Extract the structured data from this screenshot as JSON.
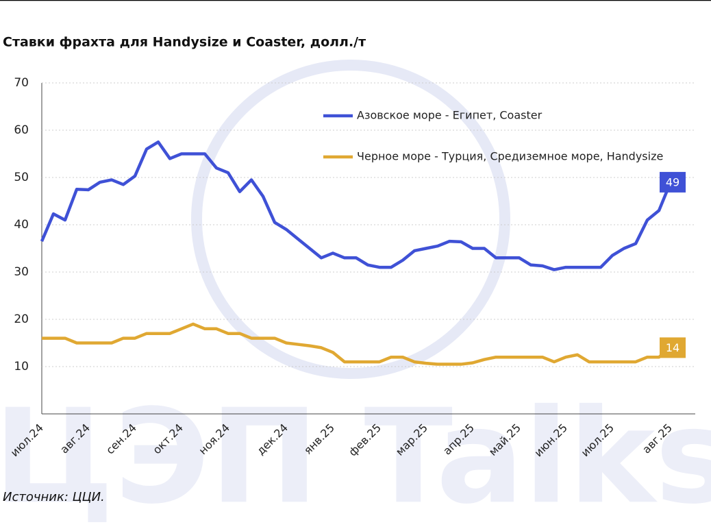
{
  "chart_data": {
    "type": "line",
    "title": "Ставки фрахта для Handysize и Coaster, долл./т",
    "source": "Источник: ЦЦИ.",
    "watermark": "ЦЭП Talks",
    "categories": [
      "июл.24",
      null,
      null,
      null,
      "авг.24",
      null,
      null,
      null,
      "сен.24",
      null,
      null,
      null,
      "окт.24",
      null,
      null,
      null,
      "ноя.24",
      null,
      null,
      null,
      null,
      "дек.24",
      null,
      null,
      null,
      "янв.25",
      null,
      null,
      null,
      "фев.25",
      null,
      null,
      null,
      "мар.25",
      null,
      null,
      null,
      "апр.25",
      null,
      null,
      null,
      "май.25",
      null,
      null,
      null,
      "июн.25",
      null,
      null,
      null,
      "июл.25",
      null,
      null,
      null,
      null,
      "авг.25",
      null,
      null
    ],
    "series": [
      {
        "name": "Азовское море - Египет, Coaster",
        "color": "#3f51d6",
        "values": [
          36.5,
          42.3,
          41,
          47.5,
          47.4,
          49,
          49.5,
          48.5,
          50.3,
          56,
          57.5,
          54,
          55,
          55,
          55,
          52,
          51,
          47,
          49.5,
          46,
          40.5,
          39,
          37,
          35,
          33,
          34,
          33,
          33,
          31.5,
          31,
          31,
          32.5,
          34.5,
          35,
          35.5,
          36.5,
          36.4,
          35,
          35,
          33,
          33,
          33,
          31.5,
          31.3,
          30.5,
          31,
          31,
          31,
          31,
          33.5,
          35,
          36,
          41,
          43,
          49,
          null,
          null
        ]
      },
      {
        "name": "Черное море - Турция, Средиземное море, Handysize",
        "color": "#e0a832",
        "values": [
          16,
          16,
          16,
          15,
          15,
          15,
          15,
          16,
          16,
          17,
          17,
          17,
          18,
          19,
          18,
          18,
          17,
          17,
          16,
          16,
          16,
          15,
          14.7,
          14.4,
          14,
          13,
          11,
          11,
          11,
          11,
          12,
          12,
          11,
          10.7,
          10.5,
          10.5,
          10.5,
          10.8,
          11.5,
          12,
          12,
          12,
          12,
          12,
          11,
          12,
          12.5,
          11,
          11,
          11,
          11,
          11,
          12,
          12,
          14,
          null,
          null
        ]
      }
    ],
    "ylim": [
      0,
      70
    ],
    "yticks": [
      10,
      20,
      30,
      40,
      50,
      60,
      70
    ],
    "grid": true
  }
}
